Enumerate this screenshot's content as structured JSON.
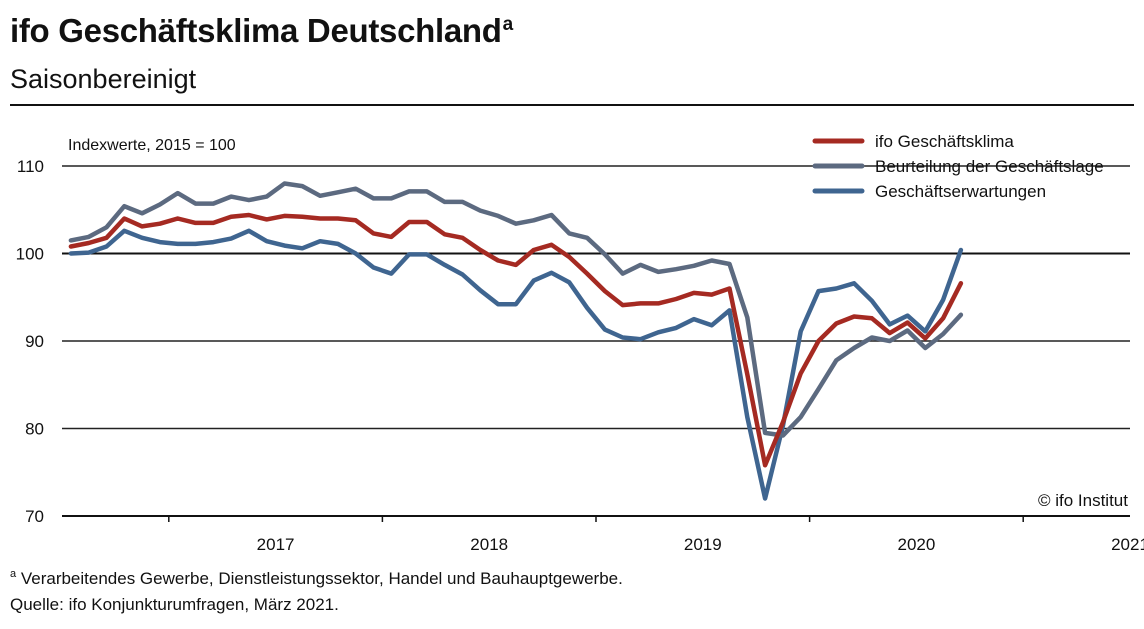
{
  "header": {
    "title": "ifo Geschäftsklima Deutschland",
    "title_sup": "a",
    "subtitle": "Saisonbereinigt"
  },
  "footer": {
    "footnote_marker": "a",
    "footnote_text": " Verarbeitendes Gewerbe, Dienstleistungssektor, Handel und Bauhauptgewerbe.",
    "source": "Quelle: ifo Konjunkturumfragen, März 2021."
  },
  "chart_data": {
    "type": "line",
    "ylabel": "Indexwerte, 2015 = 100",
    "ylim": [
      70,
      112
    ],
    "yticks": [
      70,
      80,
      90,
      100,
      110
    ],
    "grid": "horizontal at 80, 90, 100, 110",
    "legend_position": "top-right",
    "copyright": "© ifo Institut",
    "x_start": "2016-07",
    "x_end": "2021-06",
    "year_labels": [
      "2017",
      "2018",
      "2019",
      "2020",
      "2021"
    ],
    "colors": {
      "klima": "#a52a22",
      "lage": "#5c6a80",
      "erwartungen": "#3f6590"
    },
    "series": [
      {
        "key": "klima",
        "name": "ifo Geschäftsklima",
        "values": [
          100.8,
          101.2,
          101.8,
          104.0,
          103.1,
          103.4,
          104.0,
          103.5,
          103.5,
          104.2,
          104.4,
          103.9,
          104.3,
          104.2,
          104.0,
          104.0,
          103.8,
          102.3,
          101.9,
          103.6,
          103.6,
          102.2,
          101.8,
          100.4,
          99.2,
          98.7,
          100.4,
          101.0,
          99.6,
          97.7,
          95.7,
          94.1,
          94.3,
          94.3,
          94.8,
          95.5,
          95.3,
          96.0,
          86.2,
          75.8,
          80.7,
          86.3,
          90.0,
          92.0,
          92.8,
          92.6,
          90.9,
          92.1,
          90.3,
          92.6,
          96.6
        ],
        "y_hidden_at_zero": false
      },
      {
        "key": "lage",
        "name": "Beurteilung der Geschäftslage",
        "values": [
          101.5,
          101.9,
          103.0,
          105.4,
          104.6,
          105.6,
          106.9,
          105.7,
          105.7,
          106.5,
          106.1,
          106.5,
          108.0,
          107.7,
          106.6,
          107.0,
          107.4,
          106.3,
          106.3,
          107.1,
          107.1,
          105.9,
          105.9,
          104.9,
          104.3,
          103.4,
          103.8,
          104.4,
          102.3,
          101.8,
          99.9,
          97.7,
          98.7,
          97.9,
          98.2,
          98.6,
          99.2,
          98.8,
          92.7,
          79.5,
          79.2,
          81.3,
          84.5,
          87.8,
          89.2,
          90.4,
          90.0,
          91.2,
          89.2,
          90.8,
          93.0
        ]
      },
      {
        "key": "erwartungen",
        "name": "Geschäftserwartungen",
        "values": [
          100.0,
          100.1,
          100.8,
          102.6,
          101.8,
          101.3,
          101.1,
          101.1,
          101.3,
          101.7,
          102.6,
          101.4,
          100.9,
          100.6,
          101.4,
          101.1,
          100.0,
          98.4,
          97.7,
          99.9,
          99.9,
          98.7,
          97.6,
          95.8,
          94.2,
          94.2,
          96.9,
          97.8,
          96.7,
          93.8,
          91.3,
          90.4,
          90.2,
          91.0,
          91.5,
          92.5,
          91.8,
          93.5,
          81.3,
          72.0,
          80.3,
          91.1,
          95.7,
          96.0,
          96.6,
          94.6,
          91.9,
          92.9,
          91.1,
          94.7,
          100.4
        ]
      }
    ]
  }
}
